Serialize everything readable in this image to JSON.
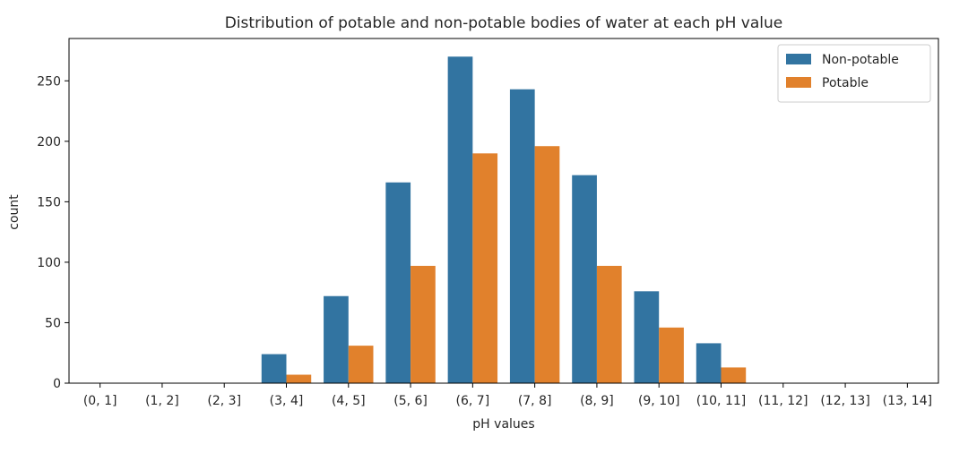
{
  "chart_data": {
    "type": "bar",
    "title": "Distribution of potable and non-potable bodies of water at each pH value",
    "xlabel": "pH values",
    "ylabel": "count",
    "categories": [
      "(0, 1]",
      "(1, 2]",
      "(2, 3]",
      "(3, 4]",
      "(4, 5]",
      "(5, 6]",
      "(6, 7]",
      "(7, 8]",
      "(8, 9]",
      "(9, 10]",
      "(10, 11]",
      "(11, 12]",
      "(12, 13]",
      "(13, 14]"
    ],
    "series": [
      {
        "name": "Non-potable",
        "color": "#3274a1",
        "values": [
          0,
          0,
          0,
          24,
          72,
          166,
          270,
          243,
          172,
          76,
          33,
          0,
          0,
          0
        ]
      },
      {
        "name": "Potable",
        "color": "#e1812c",
        "values": [
          0,
          0,
          0,
          7,
          31,
          97,
          190,
          196,
          97,
          46,
          13,
          0,
          0,
          0
        ]
      }
    ],
    "ylim": [
      0,
      285
    ],
    "yticks": [
      0,
      50,
      100,
      150,
      200,
      250
    ],
    "grid": false,
    "legend_position": "top-right"
  }
}
